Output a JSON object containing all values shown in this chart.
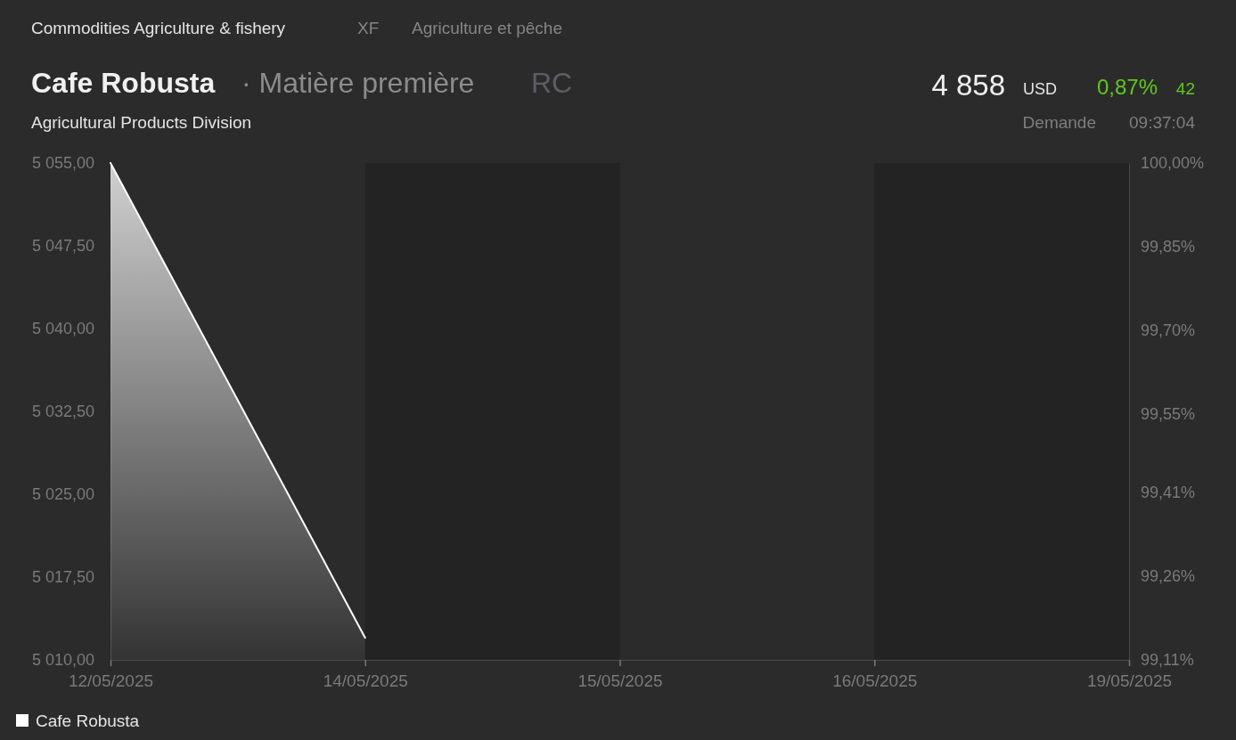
{
  "chart_data": {
    "type": "area",
    "title": "Cafe Robusta",
    "subtitle": "Agricultural Products Division",
    "annotations": [
      "Commodities Agriculture & fishery",
      "XF",
      "Agriculture et pêche",
      "· Matière première",
      "RC",
      "4 858",
      "USD",
      "0,87%",
      "42",
      "Demande",
      "09:37:04"
    ],
    "categories": [
      "12/05/2025",
      "14/05/2025",
      "15/05/2025",
      "16/05/2025",
      "19/05/2025"
    ],
    "series": [
      {
        "name": "Cafe Robusta",
        "color": "#ffffff",
        "values": [
          5055,
          5012,
          null,
          null,
          null
        ]
      }
    ],
    "ylim": [
      5010,
      5055
    ],
    "yticks": [
      {
        "value": 5010,
        "label": "5 010,00"
      },
      {
        "value": 5017.5,
        "label": "5 017,50"
      },
      {
        "value": 5025,
        "label": "5 025,00"
      },
      {
        "value": 5032.5,
        "label": "5 032,50"
      },
      {
        "value": 5040,
        "label": "5 040,00"
      },
      {
        "value": 5047.5,
        "label": "5 047,50"
      },
      {
        "value": 5055,
        "label": "5 055,00"
      }
    ],
    "y2lim": [
      99.11,
      100
    ],
    "y2ticks": [
      {
        "value": 99.11,
        "label": "99,11%"
      },
      {
        "value": 99.26,
        "label": "99,26%"
      },
      {
        "value": 99.41,
        "label": "99,41%"
      },
      {
        "value": 99.55,
        "label": "99,55%"
      },
      {
        "value": 99.7,
        "label": "99,70%"
      },
      {
        "value": 99.85,
        "label": "99,85%"
      },
      {
        "value": 100,
        "label": "100,00%"
      }
    ],
    "bands": [
      {
        "axis": "x",
        "from": "14/05/2025",
        "to": "15/05/2025",
        "color": "#232323"
      },
      {
        "axis": "x",
        "from": "16/05/2025",
        "to": "19/05/2025",
        "color": "#232323"
      }
    ],
    "legend": "bottom left"
  }
}
